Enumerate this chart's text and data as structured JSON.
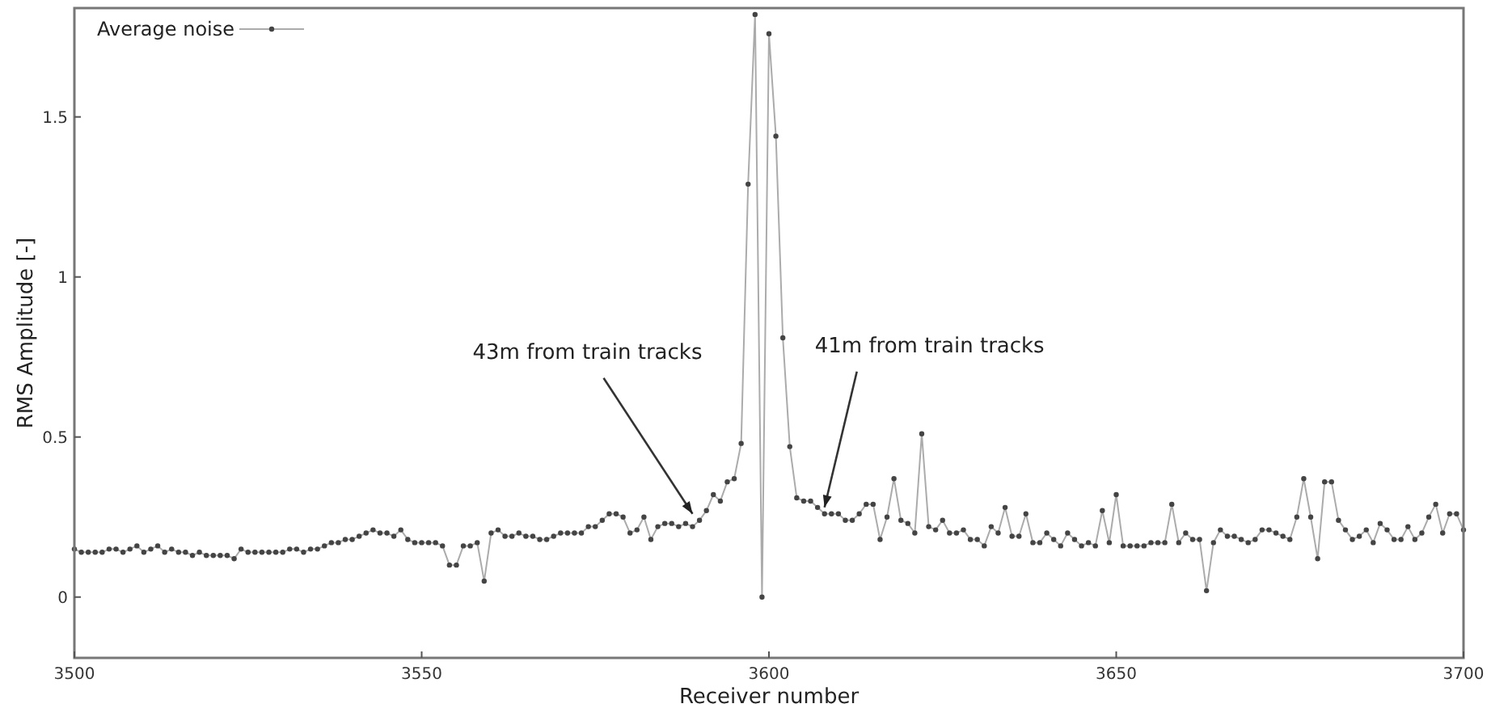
{
  "chart_data": {
    "type": "line",
    "xlabel": "Receiver number",
    "ylabel": "RMS Amplitude [-]",
    "xlim": [
      3500,
      3700
    ],
    "xticks": [
      3500,
      3550,
      3600,
      3650,
      3700
    ],
    "ylim": [
      -0.19,
      1.84
    ],
    "yticks": [
      0,
      0.5,
      1,
      1.5
    ],
    "grid": false,
    "legend": "top left",
    "marker": "circle",
    "line_style": "solid",
    "annotations": [
      {
        "text": "43m from train tracks",
        "x": 3589,
        "y": 0.24
      },
      {
        "text": "41m from train tracks",
        "x": 3608,
        "y": 0.26
      }
    ],
    "series": [
      {
        "name": "Average noise",
        "color": "#444444",
        "x": [
          3500,
          3501,
          3502,
          3503,
          3504,
          3505,
          3506,
          3507,
          3508,
          3509,
          3510,
          3511,
          3512,
          3513,
          3514,
          3515,
          3516,
          3517,
          3518,
          3519,
          3520,
          3521,
          3522,
          3523,
          3524,
          3525,
          3526,
          3527,
          3528,
          3529,
          3530,
          3531,
          3532,
          3533,
          3534,
          3535,
          3536,
          3537,
          3538,
          3539,
          3540,
          3541,
          3542,
          3543,
          3544,
          3545,
          3546,
          3547,
          3548,
          3549,
          3550,
          3551,
          3552,
          3553,
          3554,
          3555,
          3556,
          3557,
          3558,
          3559,
          3560,
          3561,
          3562,
          3563,
          3564,
          3565,
          3566,
          3567,
          3568,
          3569,
          3570,
          3571,
          3572,
          3573,
          3574,
          3575,
          3576,
          3577,
          3578,
          3579,
          3580,
          3581,
          3582,
          3583,
          3584,
          3585,
          3586,
          3587,
          3588,
          3589,
          3590,
          3591,
          3592,
          3593,
          3594,
          3595,
          3596,
          3597,
          3598,
          3599,
          3600,
          3601,
          3602,
          3603,
          3604,
          3605,
          3606,
          3607,
          3608,
          3609,
          3610,
          3611,
          3612,
          3613,
          3614,
          3615,
          3616,
          3617,
          3618,
          3619,
          3620,
          3621,
          3622,
          3623,
          3624,
          3625,
          3626,
          3627,
          3628,
          3629,
          3630,
          3631,
          3632,
          3633,
          3634,
          3635,
          3636,
          3637,
          3638,
          3639,
          3640,
          3641,
          3642,
          3643,
          3644,
          3645,
          3646,
          3647,
          3648,
          3649,
          3650,
          3651,
          3652,
          3653,
          3654,
          3655,
          3656,
          3657,
          3658,
          3659,
          3660,
          3661,
          3662,
          3663,
          3664,
          3665,
          3666,
          3667,
          3668,
          3669,
          3670,
          3671,
          3672,
          3673,
          3674,
          3675,
          3676,
          3677,
          3678,
          3679,
          3680,
          3681,
          3682,
          3683,
          3684,
          3685,
          3686,
          3687,
          3688,
          3689,
          3690,
          3691,
          3692,
          3693,
          3694,
          3695,
          3696,
          3697,
          3698,
          3699,
          3700
        ],
        "values": [
          0.15,
          0.14,
          0.14,
          0.14,
          0.14,
          0.15,
          0.15,
          0.14,
          0.15,
          0.16,
          0.14,
          0.15,
          0.16,
          0.14,
          0.15,
          0.14,
          0.14,
          0.13,
          0.14,
          0.13,
          0.13,
          0.13,
          0.13,
          0.12,
          0.15,
          0.14,
          0.14,
          0.14,
          0.14,
          0.14,
          0.14,
          0.15,
          0.15,
          0.14,
          0.15,
          0.15,
          0.16,
          0.17,
          0.17,
          0.18,
          0.18,
          0.19,
          0.2,
          0.21,
          0.2,
          0.2,
          0.19,
          0.21,
          0.18,
          0.17,
          0.17,
          0.17,
          0.17,
          0.16,
          0.1,
          0.1,
          0.16,
          0.16,
          0.17,
          0.05,
          0.2,
          0.21,
          0.19,
          0.19,
          0.2,
          0.19,
          0.19,
          0.18,
          0.18,
          0.19,
          0.2,
          0.2,
          0.2,
          0.2,
          0.22,
          0.22,
          0.24,
          0.26,
          0.26,
          0.25,
          0.2,
          0.21,
          0.25,
          0.18,
          0.22,
          0.23,
          0.23,
          0.22,
          0.23,
          0.22,
          0.24,
          0.27,
          0.32,
          0.3,
          0.36,
          0.37,
          0.48,
          1.29,
          1.82,
          0.0,
          1.76,
          1.44,
          0.81,
          0.47,
          0.31,
          0.3,
          0.3,
          0.28,
          0.26,
          0.26,
          0.26,
          0.24,
          0.24,
          0.26,
          0.29,
          0.29,
          0.18,
          0.25,
          0.37,
          0.24,
          0.23,
          0.2,
          0.51,
          0.22,
          0.21,
          0.24,
          0.2,
          0.2,
          0.21,
          0.18,
          0.18,
          0.16,
          0.22,
          0.2,
          0.28,
          0.19,
          0.19,
          0.26,
          0.17,
          0.17,
          0.2,
          0.18,
          0.16,
          0.2,
          0.18,
          0.16,
          0.17,
          0.16,
          0.27,
          0.17,
          0.32,
          0.16,
          0.16,
          0.16,
          0.16,
          0.17,
          0.17,
          0.17,
          0.29,
          0.17,
          0.2,
          0.18,
          0.18,
          0.02,
          0.17,
          0.21,
          0.19,
          0.19,
          0.18,
          0.17,
          0.18,
          0.21,
          0.21,
          0.2,
          0.19,
          0.18,
          0.25,
          0.37,
          0.25,
          0.12,
          0.36,
          0.36,
          0.24,
          0.21,
          0.18,
          0.19,
          0.21,
          0.17,
          0.23,
          0.21,
          0.18,
          0.18,
          0.22,
          0.18,
          0.2,
          0.25,
          0.29,
          0.2,
          0.26,
          0.26,
          0.21
        ]
      }
    ]
  }
}
